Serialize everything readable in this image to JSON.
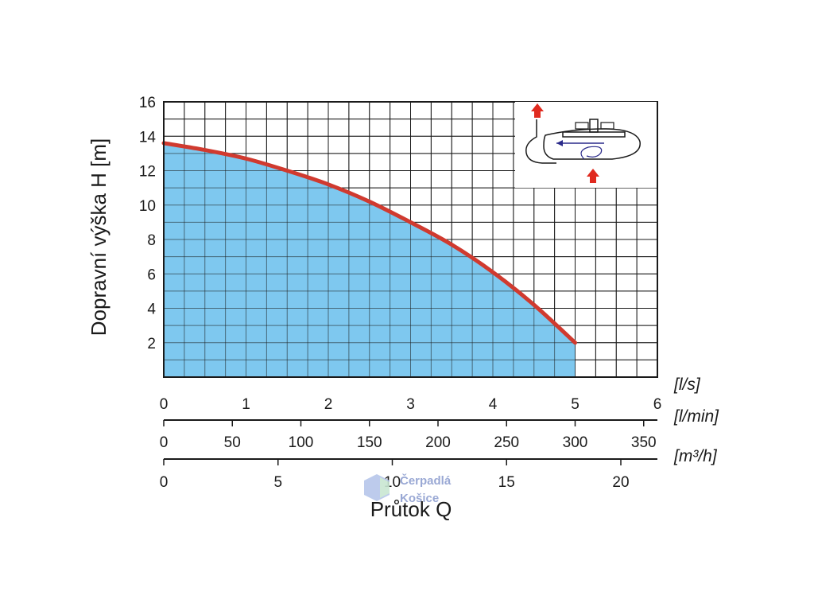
{
  "chart_data": {
    "type": "area",
    "title": "",
    "ylabel": "Dopravní výška H [m]",
    "xlabel": "Průtok Q",
    "ylim": [
      0,
      16
    ],
    "y_ticks": [
      2,
      4,
      6,
      8,
      10,
      12,
      14,
      16
    ],
    "grid": true,
    "series": [
      {
        "x": [
          0,
          0.5,
          1,
          1.5,
          2,
          2.5,
          3,
          3.5,
          4,
          4.5,
          5
        ],
        "values": [
          13.6,
          13.2,
          12.7,
          12.0,
          11.2,
          10.2,
          9.0,
          7.7,
          6.1,
          4.2,
          2.0
        ]
      }
    ],
    "x_axes": [
      {
        "unit": "[l/s]",
        "max": 6,
        "ticks": [
          0,
          1,
          2,
          3,
          4,
          5,
          6
        ]
      },
      {
        "unit": "[l/min]",
        "max": 360,
        "ticks": [
          0,
          50,
          100,
          150,
          200,
          250,
          300,
          350
        ]
      },
      {
        "unit": "[m³/h]",
        "max": 21.6,
        "ticks": [
          0,
          5,
          10,
          15,
          20
        ]
      }
    ],
    "colors": {
      "fill": "#7ec8ef",
      "curve": "#d03a2f",
      "grid": "#1a1a1a"
    }
  },
  "watermark": {
    "line1": "Čerpadlá",
    "line2": "Košice"
  }
}
